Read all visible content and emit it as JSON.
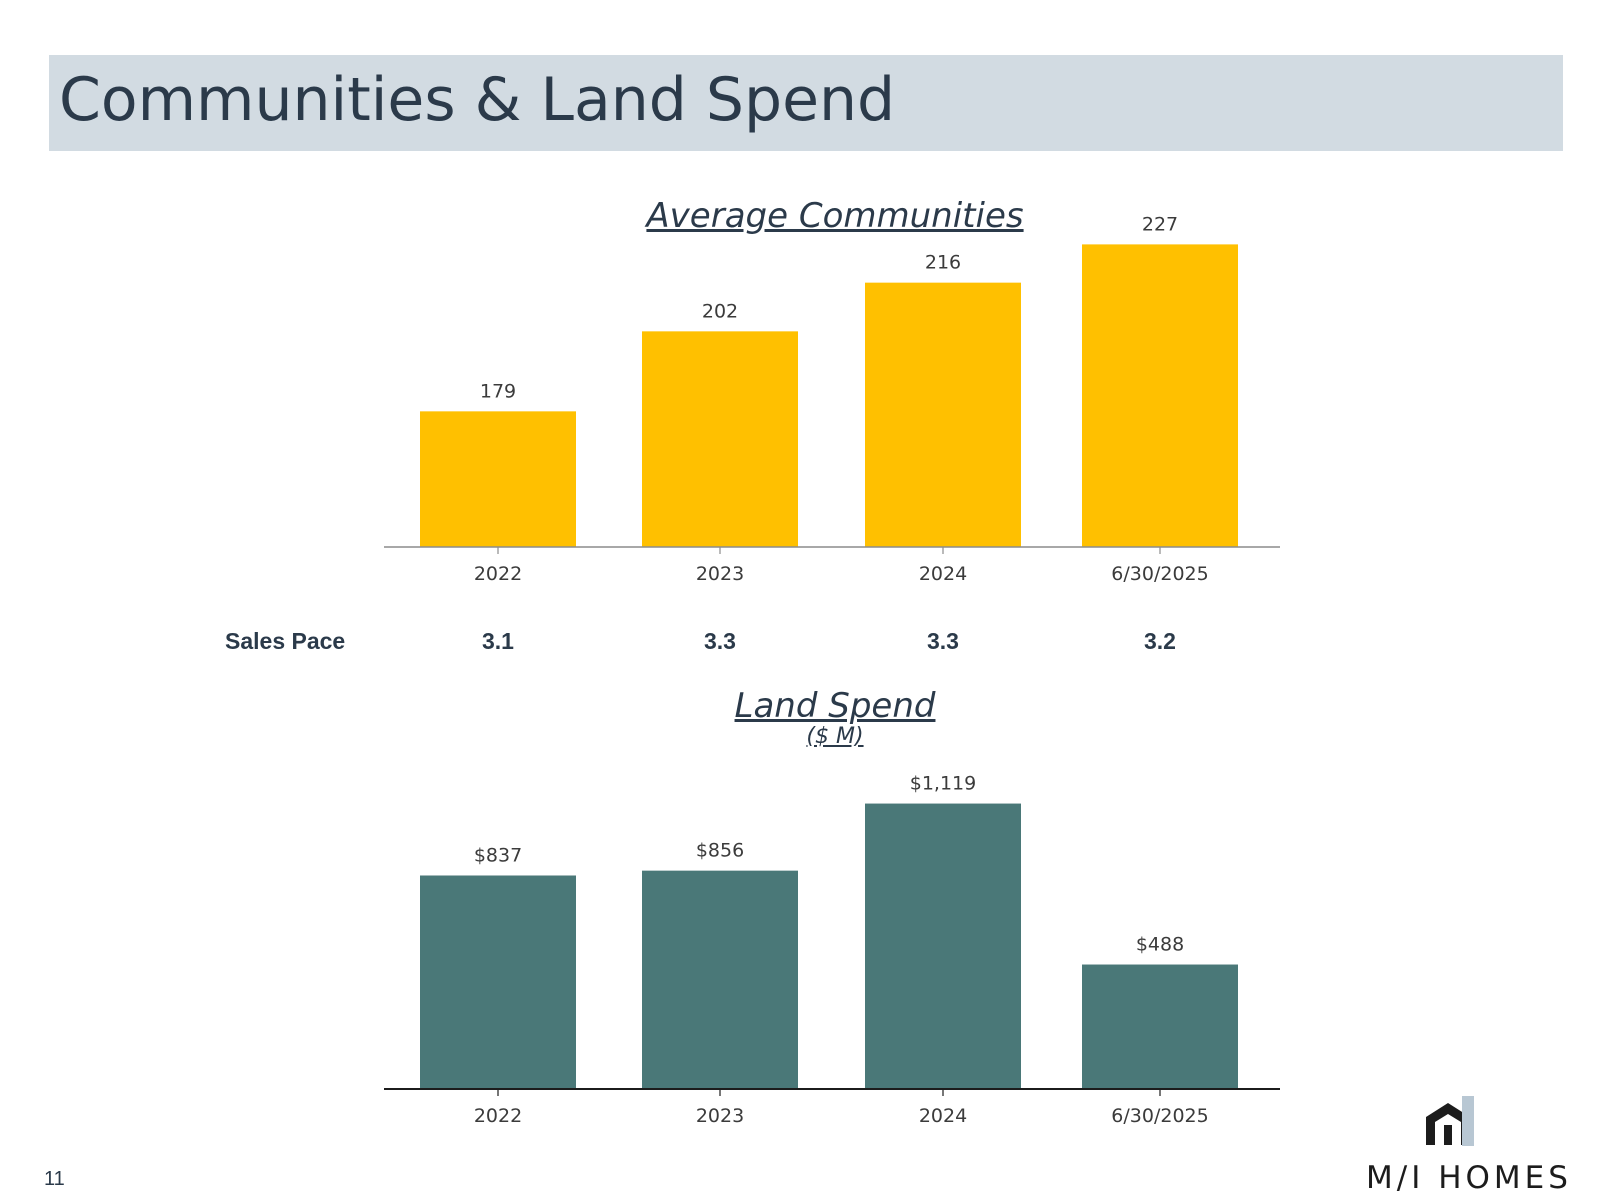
{
  "page": {
    "title": "Communities & Land Spend",
    "page_number": "11",
    "logo_text": "M/I HOMES"
  },
  "sales_pace": {
    "label": "Sales Pace",
    "values": [
      "3.1",
      "3.3",
      "3.3",
      "3.2"
    ]
  },
  "chart_data": [
    {
      "type": "bar",
      "title": "Average Communities",
      "categories": [
        "2022",
        "2023",
        "2024",
        "6/30/2025"
      ],
      "values": [
        179,
        202,
        216,
        227
      ],
      "data_labels": [
        "179",
        "202",
        "216",
        "227"
      ],
      "bar_color": "#ffc000",
      "ylim": [
        140,
        232
      ],
      "grid": false
    },
    {
      "type": "bar",
      "title": "Land Spend",
      "subtitle": "($ M)",
      "categories": [
        "2022",
        "2023",
        "2024",
        "6/30/2025"
      ],
      "values": [
        837,
        856,
        1119,
        488
      ],
      "data_labels": [
        "$837",
        "$856",
        "$1,119",
        "$488"
      ],
      "bar_color": "#4a7878",
      "ylim": [
        0,
        1180
      ],
      "grid": false
    }
  ]
}
